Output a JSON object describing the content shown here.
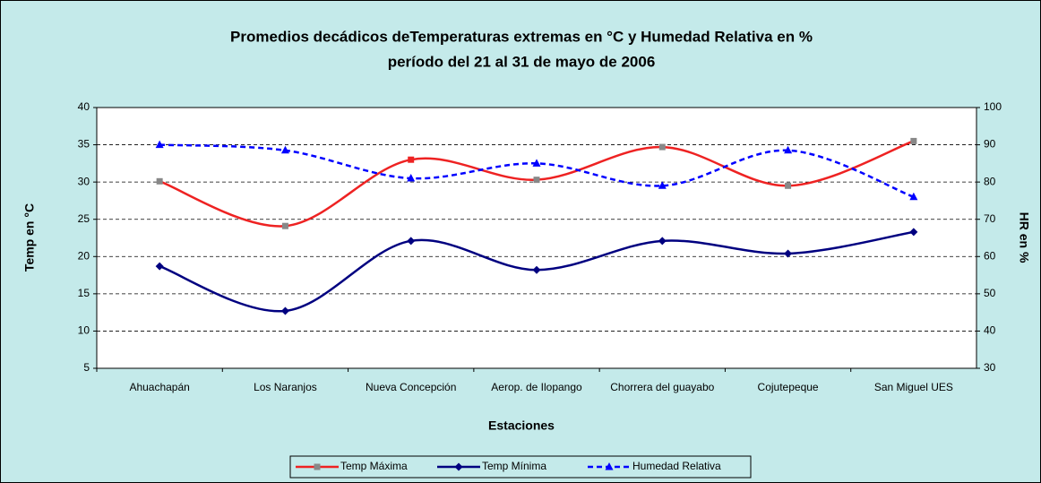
{
  "chart_data": {
    "type": "line",
    "title": "Promedios decádicos deTemperaturas extremas en °C  y Humedad Relativa en %",
    "subtitle": "período del 21 al 31 de mayo de 2006",
    "x_label": "Estaciones",
    "y_label": "Temp en °C",
    "y2_label": "HR en %",
    "categories": [
      "Ahuachapán",
      "Los Naranjos",
      "Nueva Concepción",
      "Aerop. de Ilopango",
      "Chorrera del guayabo",
      "Cojutepeque",
      "San Miguel UES"
    ],
    "series": [
      {
        "name": "Temp Máxima",
        "color": "#ee2222",
        "values": [
          30.1,
          24.1,
          33,
          30.3,
          34.7,
          29.5,
          35.5
        ]
      },
      {
        "name": "Temp Mínima",
        "color": "#000080",
        "values": [
          18.7,
          12.7,
          22.1,
          18.2,
          22.1,
          20.4,
          23.3
        ]
      },
      {
        "name": "Humedad Relativa",
        "color": "#0000ff",
        "axis": "y2",
        "values": [
          90,
          88.5,
          81,
          85,
          79,
          88.5,
          76
        ]
      }
    ],
    "ylim": [
      5,
      40
    ],
    "yticks": [
      5,
      10,
      15,
      20,
      25,
      30,
      35,
      40
    ],
    "y2lim": [
      30,
      100
    ],
    "y2ticks": [
      30,
      40,
      50,
      60,
      70,
      80,
      90,
      100
    ],
    "grid": true,
    "legend": "bottom"
  }
}
